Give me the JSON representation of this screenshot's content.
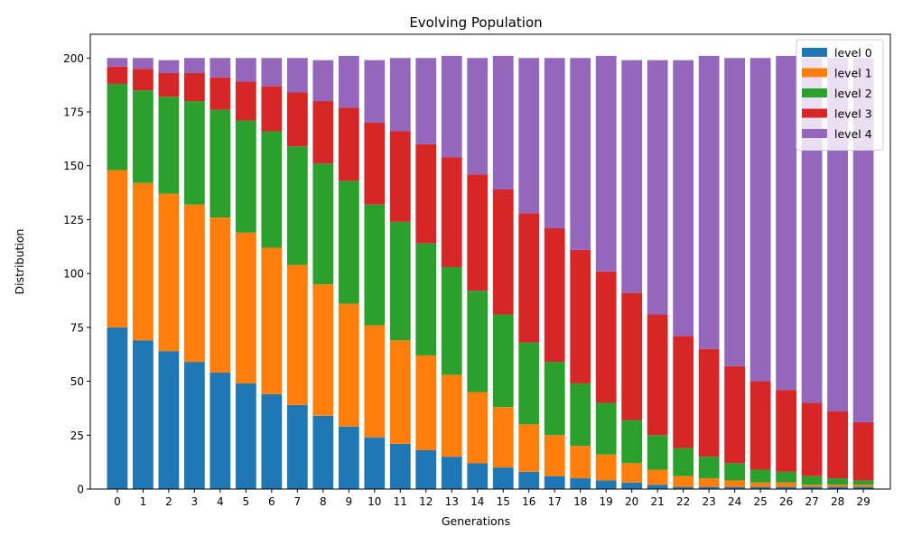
{
  "chart_data": {
    "type": "bar",
    "stacked": true,
    "title": "Evolving Population",
    "xlabel": "Generations",
    "ylabel": "Distribution",
    "ylim": [
      0,
      211
    ],
    "yticks": [
      0,
      25,
      50,
      75,
      100,
      125,
      150,
      175,
      200
    ],
    "categories": [
      "0",
      "1",
      "2",
      "3",
      "4",
      "5",
      "6",
      "7",
      "8",
      "9",
      "10",
      "11",
      "12",
      "13",
      "14",
      "15",
      "16",
      "17",
      "18",
      "19",
      "20",
      "21",
      "22",
      "23",
      "24",
      "25",
      "26",
      "27",
      "28",
      "29"
    ],
    "legend_position": "upper-right",
    "series": [
      {
        "name": "level 0",
        "color": "#1f77b4",
        "values": [
          75,
          69,
          64,
          59,
          54,
          49,
          44,
          39,
          34,
          29,
          24,
          21,
          18,
          15,
          12,
          10,
          8,
          6,
          5,
          4,
          3,
          2,
          1,
          1,
          1,
          1,
          1,
          1,
          1,
          1
        ]
      },
      {
        "name": "level 1",
        "color": "#ff7f0e",
        "values": [
          73,
          73,
          73,
          73,
          72,
          70,
          68,
          65,
          61,
          57,
          52,
          48,
          44,
          38,
          33,
          28,
          22,
          19,
          15,
          12,
          9,
          7,
          5,
          4,
          3,
          2,
          2,
          1,
          1,
          1
        ]
      },
      {
        "name": "level 2",
        "color": "#2ca02c",
        "values": [
          40,
          43,
          45,
          48,
          50,
          52,
          54,
          55,
          56,
          57,
          56,
          55,
          52,
          50,
          47,
          43,
          38,
          34,
          29,
          24,
          20,
          16,
          13,
          10,
          8,
          6,
          5,
          4,
          3,
          2
        ]
      },
      {
        "name": "level 3",
        "color": "#d62728",
        "values": [
          8,
          10,
          11,
          13,
          15,
          18,
          21,
          25,
          29,
          34,
          38,
          42,
          46,
          51,
          54,
          58,
          60,
          62,
          62,
          61,
          59,
          56,
          52,
          50,
          45,
          41,
          38,
          34,
          31,
          27
        ]
      },
      {
        "name": "level 4",
        "color": "#9467bd",
        "values": [
          4,
          5,
          6,
          7,
          9,
          11,
          13,
          16,
          19,
          24,
          29,
          34,
          40,
          47,
          54,
          62,
          72,
          79,
          89,
          100,
          108,
          118,
          128,
          136,
          143,
          150,
          155,
          160,
          164,
          169
        ]
      }
    ]
  }
}
